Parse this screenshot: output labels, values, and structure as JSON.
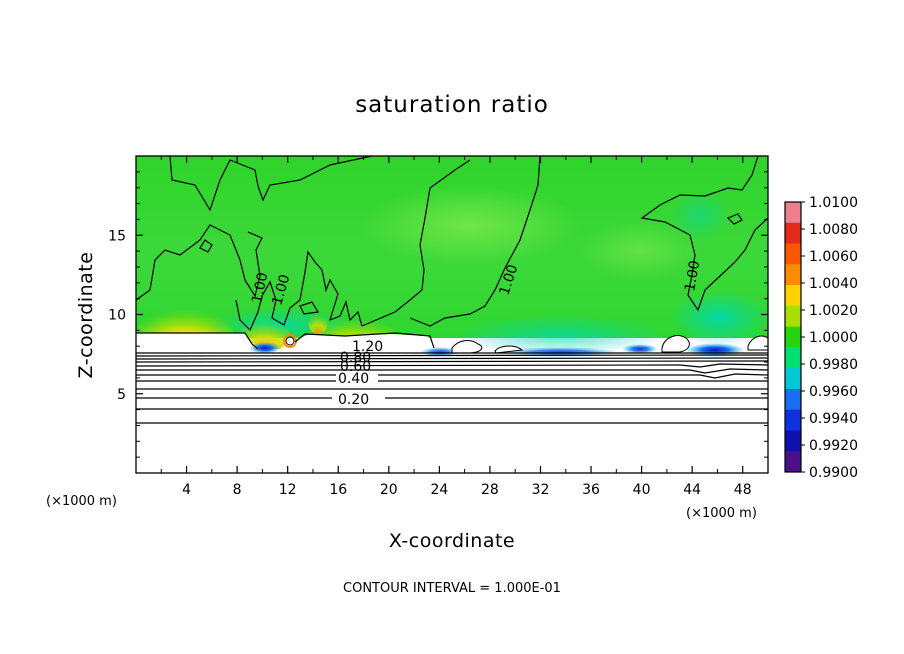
{
  "chart_data": {
    "type": "heatmap",
    "title": "saturation ratio",
    "xlabel": "X-coordinate",
    "ylabel": "Z-coordinate",
    "x_unit": "(×1000 m)",
    "x_unit_right": "(×1000 m)",
    "footer": "CONTOUR INTERVAL = 1.000E-01",
    "xlim": [
      0,
      50
    ],
    "ylim": [
      0,
      20
    ],
    "xticks": [
      4,
      8,
      12,
      16,
      20,
      24,
      28,
      32,
      36,
      40,
      44,
      48
    ],
    "yticks": [
      5,
      10,
      15
    ],
    "colorbar": {
      "min": 0.99,
      "max": 1.01,
      "labels": [
        "1.0100",
        "1.0080",
        "1.0060",
        "1.0040",
        "1.0020",
        "1.0000",
        "0.9980",
        "0.9960",
        "0.9940",
        "0.9920",
        "0.9900"
      ],
      "colors": [
        "#ee7f8f",
        "#e42a1c",
        "#ff5500",
        "#ff8c00",
        "#ffd200",
        "#aadd00",
        "#25d510",
        "#00e070",
        "#00c8d8",
        "#1a6cf0",
        "#1030e0",
        "#1010b0",
        "#4a1088"
      ]
    },
    "contour_labels": [
      "1.20",
      "0.80",
      "0.60",
      "0.40",
      "0.20",
      "1.00",
      "1.00",
      "1.00",
      "1.00"
    ],
    "cloud_top_z": 8.9,
    "subcloud_contours_z": [
      7.5,
      7.3,
      7.1,
      6.8,
      6.5,
      6.2,
      5.9,
      5.3,
      4.7,
      3.4
    ]
  }
}
